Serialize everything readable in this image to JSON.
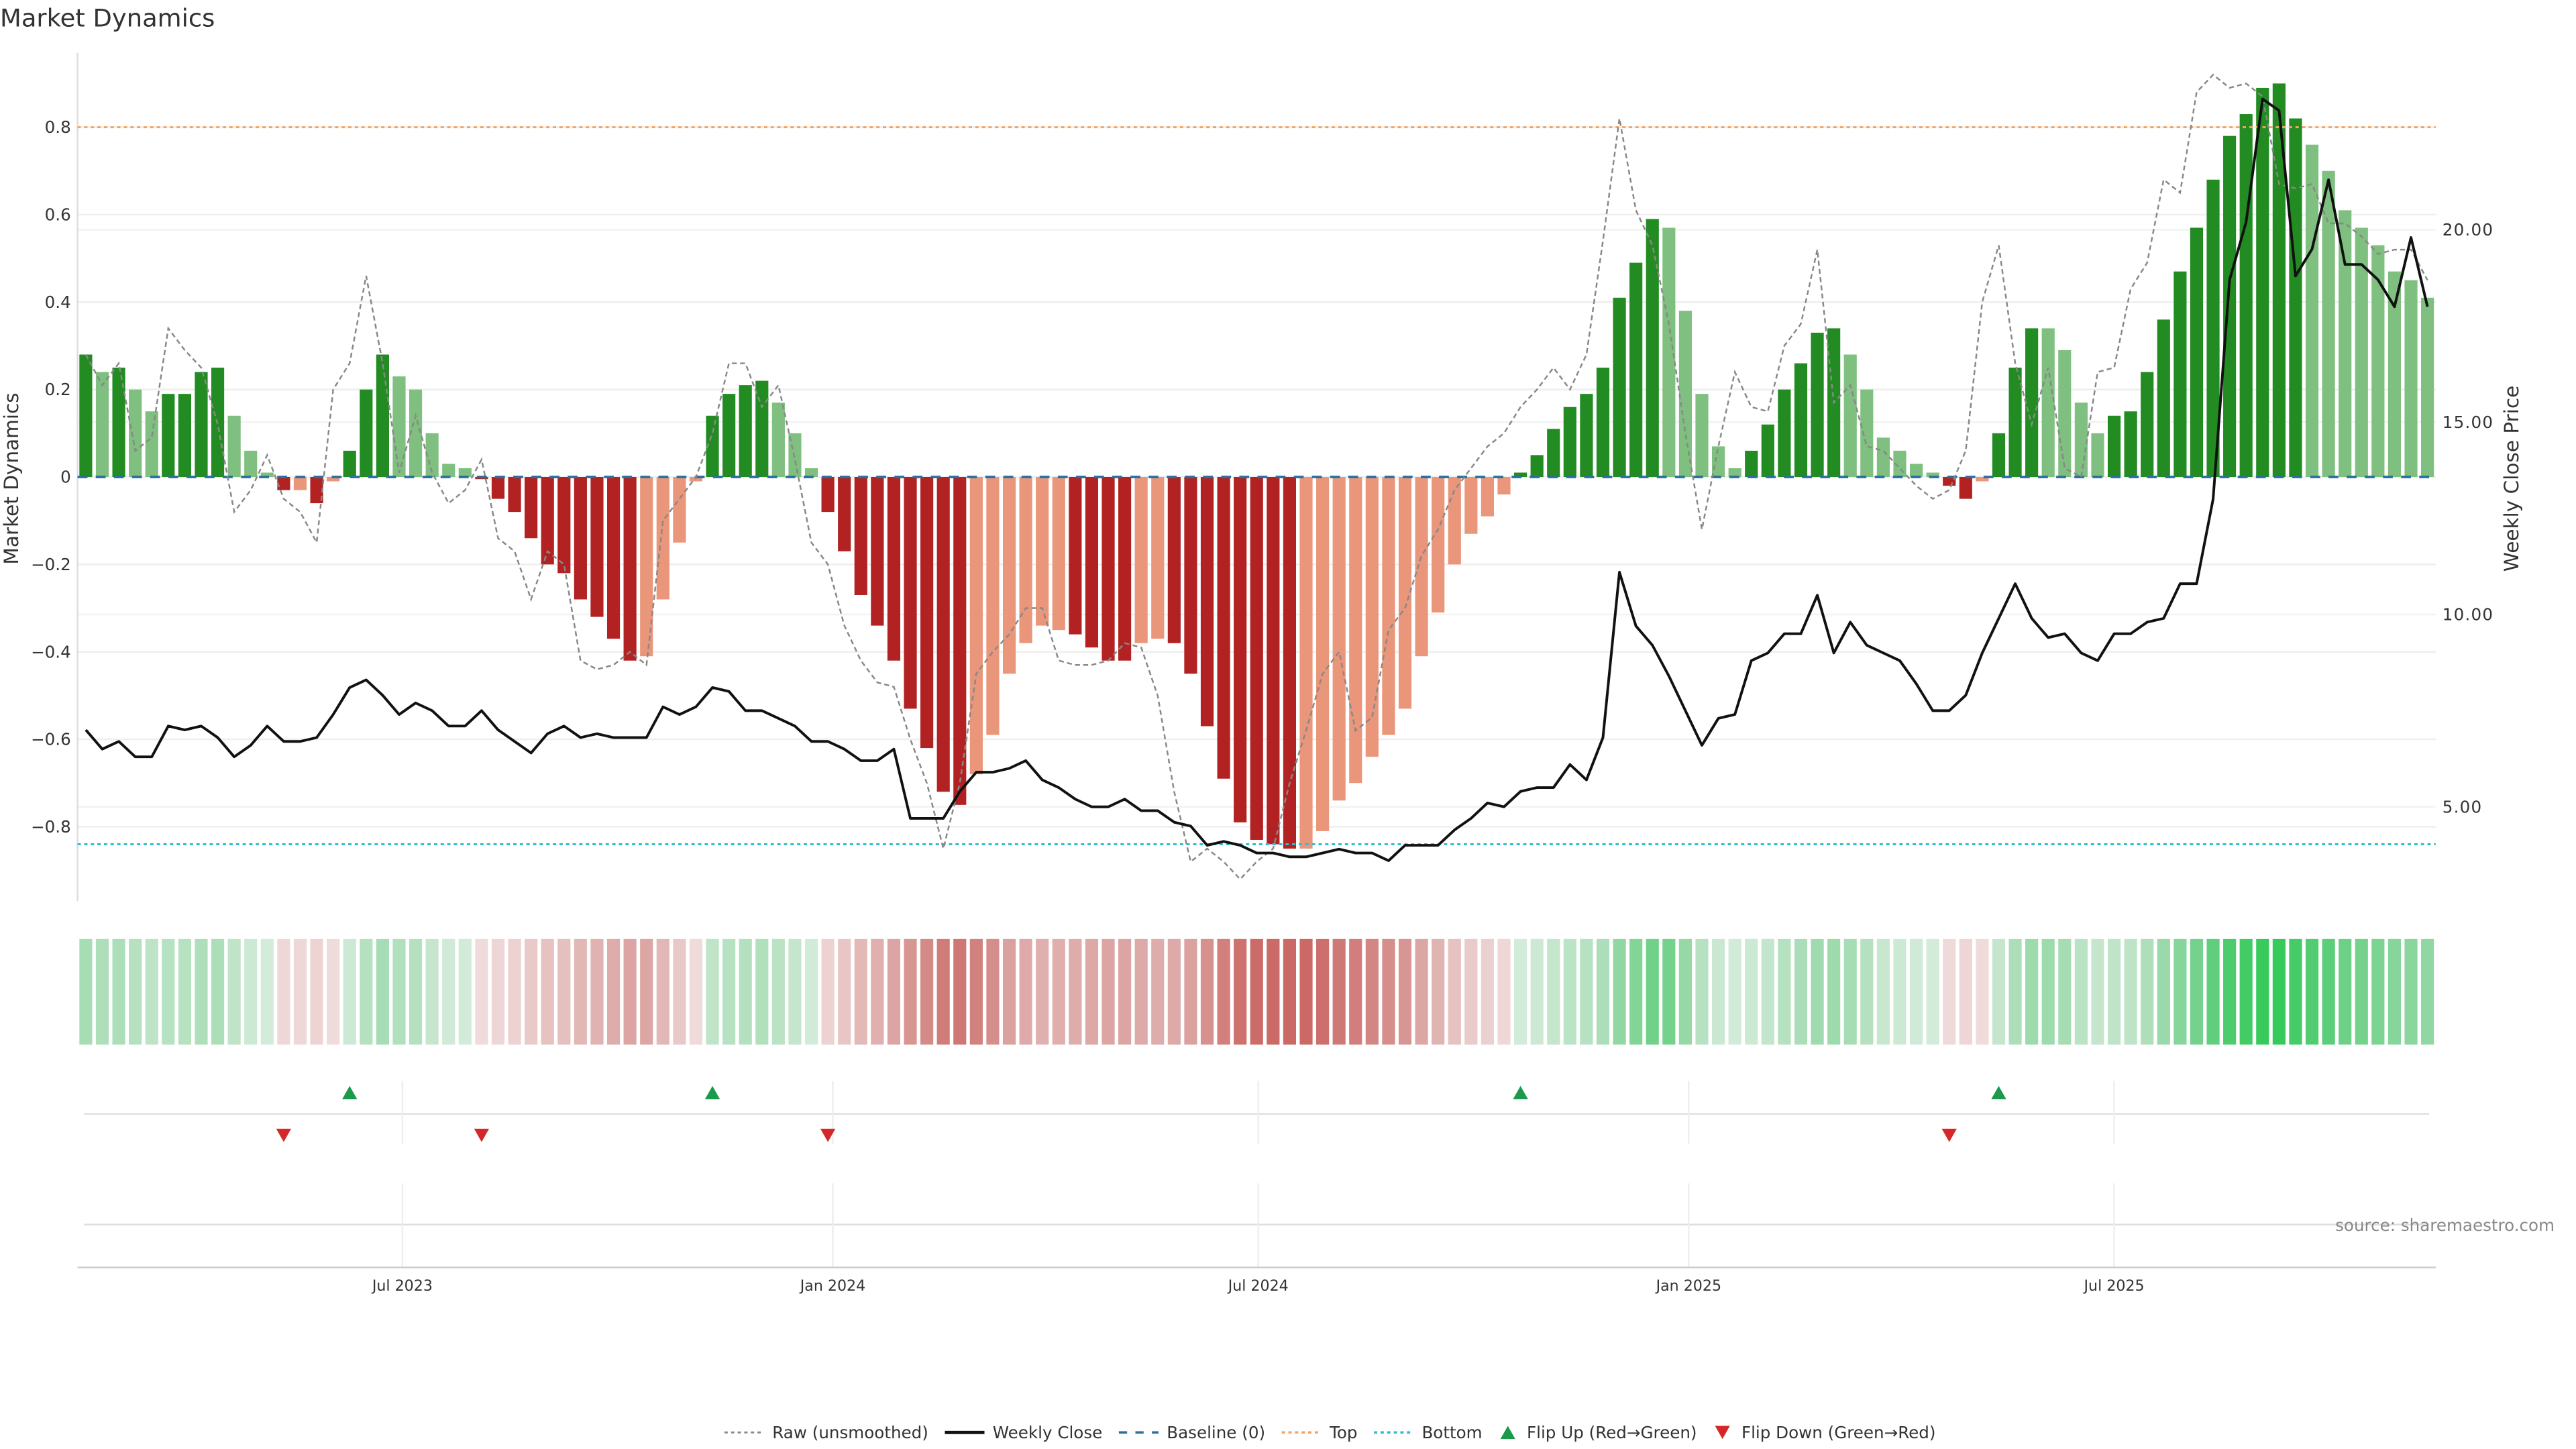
{
  "chart_data": {
    "type": "bar",
    "title": "Market Dynamics",
    "ylabel": "Market Dynamics",
    "y2label": "Weekly Close Price",
    "ylim": [
      -0.97,
      0.97
    ],
    "y2lim": [
      2.55,
      24.6
    ],
    "yticks": [
      -0.8,
      -0.6,
      -0.4,
      -0.2,
      0,
      0.2,
      0.4,
      0.6,
      0.8
    ],
    "ytick_labels": [
      "−0.8",
      "−0.6",
      "−0.4",
      "−0.2",
      "0",
      "0.2",
      "0.4",
      "0.6",
      "0.8"
    ],
    "y2ticks": [
      5,
      10,
      15,
      20
    ],
    "y2tick_labels": [
      "5.00",
      "10.00",
      "15.00",
      "20.00"
    ],
    "xticks": [
      19.7,
      45.8,
      71.6,
      97.7,
      123.5
    ],
    "xtick_labels": [
      "Jul 2023",
      "Jan 2024",
      "Jul 2024",
      "Jan 2025",
      "Jul 2025"
    ],
    "top_level": 0.8,
    "bottom_level": -0.84,
    "baseline": 0,
    "bars": [
      0.28,
      0.24,
      0.25,
      0.2,
      0.15,
      0.19,
      0.19,
      0.24,
      0.25,
      0.14,
      0.06,
      0.01,
      -0.03,
      -0.03,
      -0.06,
      -0.01,
      0.06,
      0.2,
      0.28,
      0.23,
      0.2,
      0.1,
      0.03,
      0.02,
      -0.005,
      -0.05,
      -0.08,
      -0.14,
      -0.2,
      -0.22,
      -0.28,
      -0.32,
      -0.37,
      -0.42,
      -0.41,
      -0.28,
      -0.15,
      -0.01,
      0.14,
      0.19,
      0.21,
      0.22,
      0.17,
      0.1,
      0.02,
      -0.08,
      -0.17,
      -0.27,
      -0.34,
      -0.42,
      -0.53,
      -0.62,
      -0.72,
      -0.75,
      -0.68,
      -0.59,
      -0.45,
      -0.38,
      -0.34,
      -0.35,
      -0.36,
      -0.39,
      -0.42,
      -0.42,
      -0.38,
      -0.37,
      -0.38,
      -0.45,
      -0.57,
      -0.69,
      -0.79,
      -0.83,
      -0.84,
      -0.85,
      -0.85,
      -0.81,
      -0.74,
      -0.7,
      -0.64,
      -0.59,
      -0.53,
      -0.41,
      -0.31,
      -0.2,
      -0.13,
      -0.09,
      -0.04,
      0.01,
      0.05,
      0.11,
      0.16,
      0.19,
      0.25,
      0.41,
      0.49,
      0.59,
      0.57,
      0.38,
      0.19,
      0.07,
      0.02,
      0.06,
      0.12,
      0.2,
      0.26,
      0.33,
      0.34,
      0.28,
      0.2,
      0.09,
      0.06,
      0.03,
      0.01,
      -0.02,
      -0.05,
      -0.01,
      0.1,
      0.25,
      0.34,
      0.34,
      0.29,
      0.17,
      0.1,
      0.14,
      0.15,
      0.24,
      0.36,
      0.47,
      0.57,
      0.68,
      0.78,
      0.83,
      0.89,
      0.9,
      0.82,
      0.76,
      0.7,
      0.61,
      0.57,
      0.53,
      0.47,
      0.45,
      0.41
    ],
    "bar_strength": "GgGggGGGGgggRrRrGGGgggggRRRRRRRRRRrrrrGGGGgggRRRRRRRRRrrrrrrRRRRrrRRRRRRRRrrrrrrrrrrrrrGGGGGGGGGgggggGGGGGGggggggRRrGGGggggGGGGGGGGGGGGgggggggggg",
    "raw": [
      0.28,
      0.21,
      0.26,
      0.06,
      0.09,
      0.34,
      0.29,
      0.25,
      0.12,
      -0.08,
      -0.03,
      0.05,
      -0.05,
      -0.08,
      -0.15,
      0.2,
      0.26,
      0.46,
      0.26,
      0.01,
      0.14,
      0.01,
      -0.06,
      -0.03,
      0.04,
      -0.14,
      -0.17,
      -0.28,
      -0.17,
      -0.2,
      -0.42,
      -0.44,
      -0.43,
      -0.4,
      -0.43,
      -0.1,
      -0.05,
      0.0,
      0.1,
      0.26,
      0.26,
      0.16,
      0.21,
      0.04,
      -0.15,
      -0.2,
      -0.34,
      -0.42,
      -0.47,
      -0.48,
      -0.6,
      -0.7,
      -0.85,
      -0.7,
      -0.45,
      -0.4,
      -0.36,
      -0.3,
      -0.3,
      -0.42,
      -0.43,
      -0.43,
      -0.42,
      -0.38,
      -0.39,
      -0.5,
      -0.72,
      -0.88,
      -0.85,
      -0.88,
      -0.92,
      -0.88,
      -0.85,
      -0.7,
      -0.58,
      -0.45,
      -0.4,
      -0.58,
      -0.55,
      -0.35,
      -0.3,
      -0.18,
      -0.12,
      -0.03,
      0.02,
      0.07,
      0.1,
      0.16,
      0.2,
      0.25,
      0.2,
      0.28,
      0.54,
      0.82,
      0.61,
      0.53,
      0.35,
      0.1,
      -0.12,
      0.07,
      0.24,
      0.16,
      0.15,
      0.3,
      0.35,
      0.52,
      0.17,
      0.21,
      0.07,
      0.06,
      0.02,
      -0.02,
      -0.05,
      -0.03,
      0.06,
      0.4,
      0.53,
      0.26,
      0.12,
      0.25,
      0.02,
      0.0,
      0.24,
      0.25,
      0.43,
      0.49,
      0.68,
      0.65,
      0.88,
      0.92,
      0.89,
      0.9,
      0.87,
      0.67,
      0.66,
      0.67,
      0.58,
      0.58,
      0.55,
      0.51,
      0.52,
      0.52,
      0.45
    ],
    "close": [
      7.0,
      6.5,
      6.7,
      6.3,
      6.3,
      7.1,
      7.0,
      7.1,
      6.8,
      6.3,
      6.6,
      7.1,
      6.7,
      6.7,
      6.8,
      7.4,
      8.1,
      8.3,
      7.9,
      7.4,
      7.7,
      7.5,
      7.1,
      7.1,
      7.5,
      7.0,
      6.7,
      6.4,
      6.9,
      7.1,
      6.8,
      6.9,
      6.8,
      6.8,
      6.8,
      7.6,
      7.4,
      7.6,
      8.1,
      8.0,
      7.5,
      7.5,
      7.3,
      7.1,
      6.7,
      6.7,
      6.5,
      6.2,
      6.2,
      6.5,
      4.7,
      4.7,
      4.7,
      5.4,
      5.9,
      5.9,
      6.0,
      6.2,
      5.7,
      5.5,
      5.2,
      5.0,
      5.0,
      5.2,
      4.9,
      4.9,
      4.6,
      4.5,
      4.0,
      4.1,
      4.0,
      3.8,
      3.8,
      3.7,
      3.7,
      3.8,
      3.9,
      3.8,
      3.8,
      3.6,
      4.0,
      4.0,
      4.0,
      4.4,
      4.7,
      5.1,
      5.0,
      5.4,
      5.5,
      5.5,
      6.1,
      5.7,
      6.8,
      11.1,
      9.7,
      9.2,
      8.4,
      7.5,
      6.6,
      7.3,
      7.4,
      8.8,
      9.0,
      9.5,
      9.5,
      10.5,
      9.0,
      9.8,
      9.2,
      9.0,
      8.8,
      8.2,
      7.5,
      7.5,
      7.9,
      9.0,
      9.9,
      10.8,
      9.9,
      9.4,
      9.5,
      9.0,
      8.8,
      9.5,
      9.5,
      9.8,
      9.9,
      10.8,
      10.8,
      13.0,
      18.7,
      20.2,
      23.4,
      23.1,
      18.8,
      19.5,
      21.3,
      19.1,
      19.1,
      18.7,
      18.0,
      19.8,
      18.0
    ],
    "flip_up_weeks": [
      16,
      38,
      87,
      116
    ],
    "flip_down_weeks": [
      12,
      24,
      45,
      113
    ],
    "legend": {
      "raw": "Raw (unsmoothed)",
      "close": "Weekly Close",
      "baseline": "Baseline (0)",
      "top": "Top",
      "bottom": "Bottom",
      "flip_up": "Flip Up (Red→Green)",
      "flip_down": "Flip Down (Green→Red)"
    },
    "legend_placement": "bottom-center",
    "colors": {
      "strong_green": "#228b22",
      "weak_green": "#7fbf7f",
      "strong_red": "#b22222",
      "weak_red": "#e9967a",
      "raw": "#888888",
      "close": "#111111",
      "baseline": "#2a6f9e",
      "top": "#f4a460",
      "bottom": "#2bbfcf",
      "flip_up": "#1a9a4a",
      "flip_down": "#d62728"
    }
  },
  "source": "source: sharemaestro.com"
}
